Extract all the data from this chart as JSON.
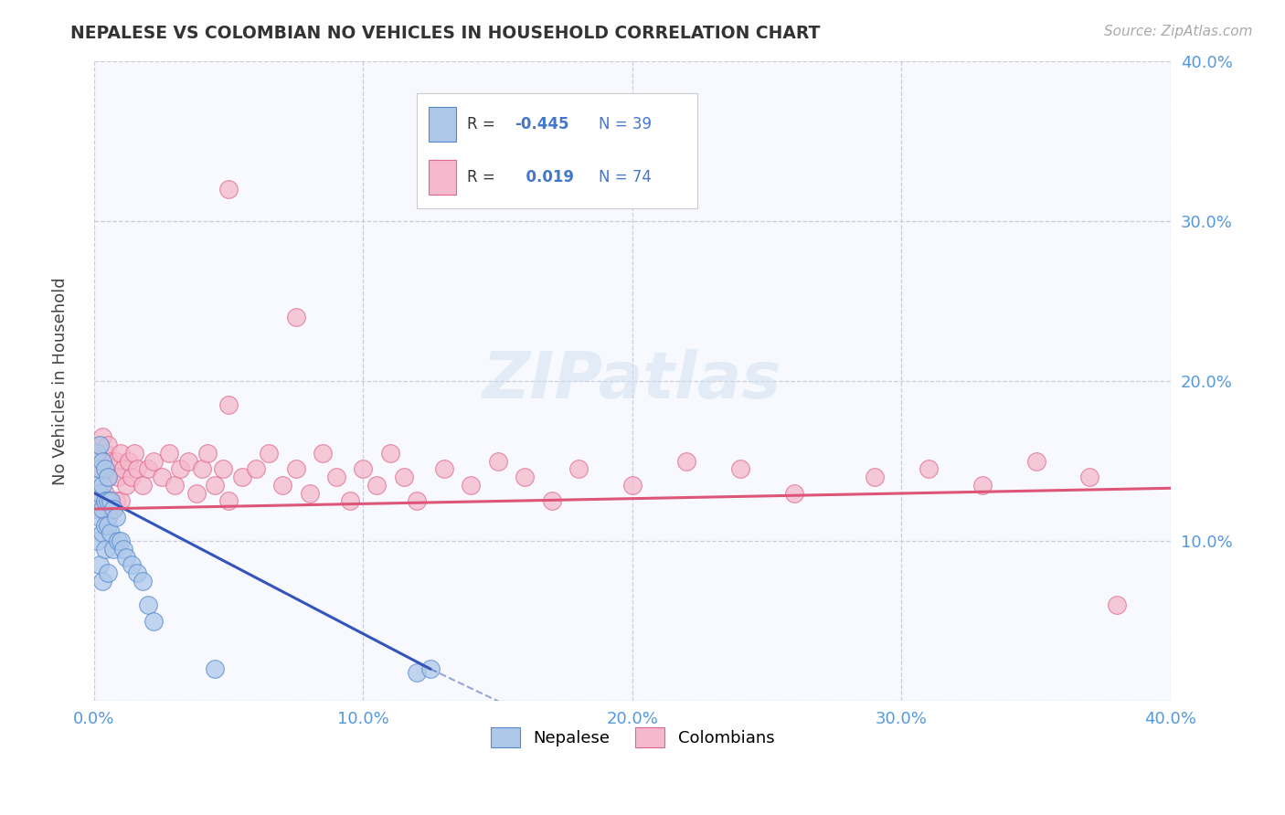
{
  "title": "NEPALESE VS COLOMBIAN NO VEHICLES IN HOUSEHOLD CORRELATION CHART",
  "source_text": "Source: ZipAtlas.com",
  "ylabel": "No Vehicles in Household",
  "xlim": [
    0.0,
    0.4
  ],
  "ylim": [
    0.0,
    0.4
  ],
  "x_ticks": [
    0.0,
    0.1,
    0.2,
    0.3,
    0.4
  ],
  "y_ticks": [
    0.0,
    0.1,
    0.2,
    0.3,
    0.4
  ],
  "x_tick_labels": [
    "0.0%",
    "10.0%",
    "20.0%",
    "30.0%",
    "40.0%"
  ],
  "right_y_tick_labels": [
    "",
    "10.0%",
    "20.0%",
    "30.0%",
    "40.0%"
  ],
  "background_color": "#ffffff",
  "plot_bg_color": "#f8f9ff",
  "grid_color": "#c8c8d8",
  "nepalese_color": "#aec8ea",
  "colombian_color": "#f5b8cc",
  "nepalese_edge_color": "#5588cc",
  "colombian_edge_color": "#e06888",
  "nepalese_line_color": "#3355bb",
  "colombian_line_color": "#dd5577",
  "tick_color": "#5599dd",
  "legend_R_color": "#4477cc",
  "nepalese_R": -0.445,
  "nepalese_N": 39,
  "colombian_R": 0.019,
  "colombian_N": 74,
  "nep_line_x": [
    0.0,
    0.125
  ],
  "nep_line_y": [
    0.13,
    0.02
  ],
  "col_line_x": [
    0.0,
    0.4
  ],
  "col_line_y": [
    0.12,
    0.133
  ],
  "watermark": "ZIPatlas",
  "nepalese_x": [
    0.001,
    0.001,
    0.001,
    0.001,
    0.002,
    0.002,
    0.002,
    0.002,
    0.002,
    0.003,
    0.003,
    0.003,
    0.003,
    0.003,
    0.004,
    0.004,
    0.004,
    0.004,
    0.005,
    0.005,
    0.005,
    0.005,
    0.006,
    0.006,
    0.007,
    0.007,
    0.008,
    0.009,
    0.01,
    0.011,
    0.012,
    0.014,
    0.016,
    0.018,
    0.02,
    0.022,
    0.045,
    0.12,
    0.125
  ],
  "nepalese_y": [
    0.155,
    0.135,
    0.12,
    0.1,
    0.16,
    0.145,
    0.13,
    0.115,
    0.085,
    0.15,
    0.135,
    0.12,
    0.105,
    0.075,
    0.145,
    0.125,
    0.11,
    0.095,
    0.14,
    0.125,
    0.11,
    0.08,
    0.125,
    0.105,
    0.12,
    0.095,
    0.115,
    0.1,
    0.1,
    0.095,
    0.09,
    0.085,
    0.08,
    0.075,
    0.06,
    0.05,
    0.02,
    0.018,
    0.02
  ],
  "colombian_x": [
    0.001,
    0.001,
    0.002,
    0.002,
    0.003,
    0.003,
    0.003,
    0.004,
    0.004,
    0.005,
    0.005,
    0.005,
    0.006,
    0.006,
    0.007,
    0.007,
    0.008,
    0.008,
    0.009,
    0.01,
    0.01,
    0.011,
    0.012,
    0.013,
    0.014,
    0.015,
    0.016,
    0.018,
    0.02,
    0.022,
    0.025,
    0.028,
    0.03,
    0.032,
    0.035,
    0.038,
    0.04,
    0.042,
    0.045,
    0.048,
    0.05,
    0.055,
    0.06,
    0.065,
    0.07,
    0.075,
    0.08,
    0.085,
    0.09,
    0.095,
    0.1,
    0.105,
    0.11,
    0.115,
    0.12,
    0.13,
    0.14,
    0.15,
    0.16,
    0.17,
    0.18,
    0.2,
    0.22,
    0.24,
    0.26,
    0.29,
    0.31,
    0.33,
    0.35,
    0.37,
    0.05,
    0.075,
    0.38,
    0.05
  ],
  "colombian_y": [
    0.155,
    0.125,
    0.16,
    0.13,
    0.165,
    0.145,
    0.12,
    0.155,
    0.13,
    0.16,
    0.14,
    0.115,
    0.15,
    0.125,
    0.145,
    0.12,
    0.15,
    0.125,
    0.14,
    0.155,
    0.125,
    0.145,
    0.135,
    0.15,
    0.14,
    0.155,
    0.145,
    0.135,
    0.145,
    0.15,
    0.14,
    0.155,
    0.135,
    0.145,
    0.15,
    0.13,
    0.145,
    0.155,
    0.135,
    0.145,
    0.125,
    0.14,
    0.145,
    0.155,
    0.135,
    0.145,
    0.13,
    0.155,
    0.14,
    0.125,
    0.145,
    0.135,
    0.155,
    0.14,
    0.125,
    0.145,
    0.135,
    0.15,
    0.14,
    0.125,
    0.145,
    0.135,
    0.15,
    0.145,
    0.13,
    0.14,
    0.145,
    0.135,
    0.15,
    0.14,
    0.185,
    0.24,
    0.06,
    0.32
  ]
}
